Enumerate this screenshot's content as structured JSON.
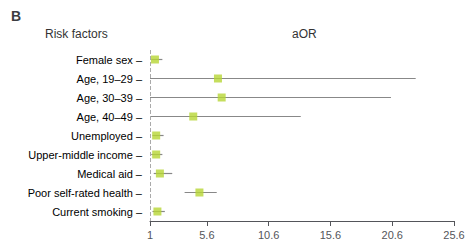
{
  "chart_data": {
    "type": "forest",
    "title": "B",
    "y_label": "Risk factors",
    "x_label": "aOR",
    "categories": [
      "Female sex –",
      "Age, 19–29 –",
      "Age, 30–39 –",
      "Age, 40–49 –",
      "Unemployed –",
      "Upper-middle income –",
      "Medical aid –",
      "Poor self-rated health –",
      "Current smoking –"
    ],
    "values": [
      1.4,
      6.5,
      6.8,
      4.5,
      1.5,
      1.5,
      1.8,
      5.0,
      1.6
    ],
    "ci_low": [
      1.1,
      1.0,
      1.0,
      1.0,
      1.2,
      1.1,
      1.3,
      3.8,
      1.2
    ],
    "ci_high": [
      2.0,
      22.5,
      20.5,
      13.2,
      2.1,
      2.0,
      2.8,
      6.4,
      2.2
    ],
    "reference_x": 1,
    "xlim": [
      1,
      25.6
    ],
    "xticks": [
      1,
      5.6,
      10.6,
      15.6,
      20.6,
      25.6
    ],
    "grid": false,
    "marker": "square"
  }
}
